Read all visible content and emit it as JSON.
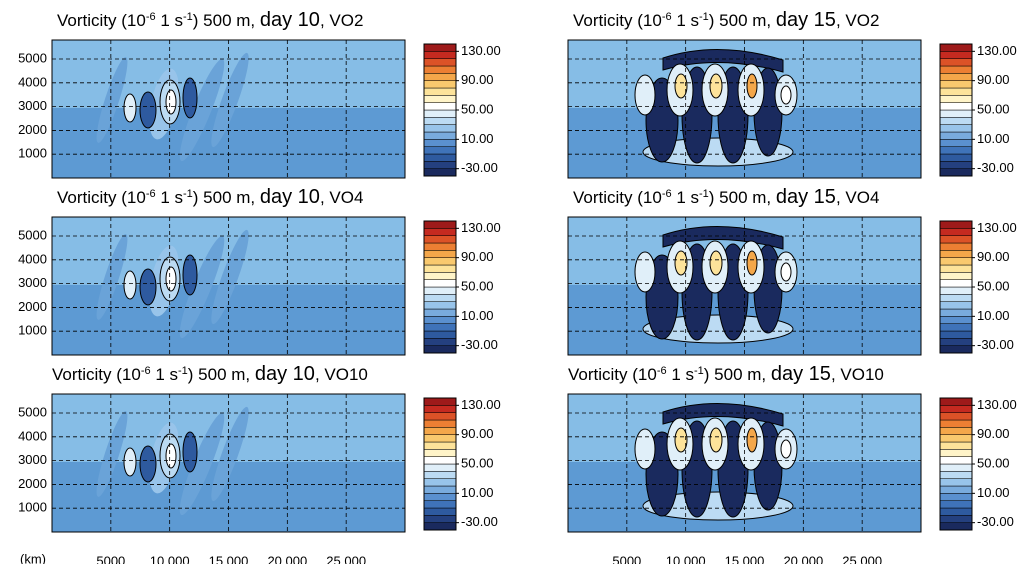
{
  "chart_data": [
    {
      "type": "contour",
      "title": [
        "Vorticity (10",
        "-6",
        " 1 s",
        "-1",
        ") 500 m, ",
        "day 10",
        ", VO2"
      ],
      "xlim": [
        0,
        30000
      ],
      "ylim": [
        0,
        5800
      ],
      "xticks": [
        5000,
        10000,
        15000,
        20000,
        25000
      ],
      "yticks": [
        1000,
        2000,
        3000,
        4000,
        5000
      ],
      "grid": true,
      "colorbar": {
        "lim": [
          -40,
          140
        ],
        "ticks": [
          {
            "value": 130,
            "label": "130.00"
          },
          {
            "value": 90,
            "label": "90.00"
          },
          {
            "value": 50,
            "label": "50.00"
          },
          {
            "value": 10,
            "label": "10.00"
          },
          {
            "value": -30,
            "label": "-30.00"
          }
        ],
        "colors": [
          "#1a2a5e",
          "#24407f",
          "#2e5a9f",
          "#3f73b9",
          "#5a90cf",
          "#79abdd",
          "#98c4ea",
          "#bcdbf3",
          "#e0eff9",
          "#ffffff",
          "#fff4c8",
          "#fde39a",
          "#f9c96e",
          "#f4a74a",
          "#ec7f33",
          "#dc5227",
          "#c52a20",
          "#9e1a1a"
        ]
      }
    },
    {
      "type": "contour",
      "title": [
        "Vorticity (10",
        "-6",
        " 1 s",
        "-1",
        ") 500 m, ",
        "day 15",
        ", VO2"
      ],
      "xlim": [
        0,
        30000
      ],
      "ylim": [
        0,
        5800
      ],
      "xticks": [
        5000,
        10000,
        15000,
        20000,
        25000
      ],
      "yticks": [
        1000,
        2000,
        3000,
        4000,
        5000
      ],
      "grid": true,
      "colorbar": {
        "lim": [
          -40,
          140
        ],
        "ticks": [
          {
            "value": 130,
            "label": "130.00"
          },
          {
            "value": 90,
            "label": "90.00"
          },
          {
            "value": 50,
            "label": "50.00"
          },
          {
            "value": 10,
            "label": "10.00"
          },
          {
            "value": -30,
            "label": "-30.00"
          }
        ],
        "colors": [
          "#1a2a5e",
          "#24407f",
          "#2e5a9f",
          "#3f73b9",
          "#5a90cf",
          "#79abdd",
          "#98c4ea",
          "#bcdbf3",
          "#e0eff9",
          "#ffffff",
          "#fff4c8",
          "#fde39a",
          "#f9c96e",
          "#f4a74a",
          "#ec7f33",
          "#dc5227",
          "#c52a20",
          "#9e1a1a"
        ]
      }
    },
    {
      "type": "contour",
      "title": [
        "Vorticity (10",
        "-6",
        " 1 s",
        "-1",
        ") 500 m, ",
        "day 10",
        ", VO4"
      ],
      "xlim": [
        0,
        30000
      ],
      "ylim": [
        0,
        5800
      ],
      "xticks": [
        5000,
        10000,
        15000,
        20000,
        25000
      ],
      "yticks": [
        1000,
        2000,
        3000,
        4000,
        5000
      ],
      "grid": true,
      "colorbar": {
        "lim": [
          -40,
          140
        ],
        "ticks": [
          {
            "value": 130,
            "label": "130.00"
          },
          {
            "value": 90,
            "label": "90.00"
          },
          {
            "value": 50,
            "label": "50.00"
          },
          {
            "value": 10,
            "label": "10.00"
          },
          {
            "value": -30,
            "label": "-30.00"
          }
        ],
        "colors": [
          "#1a2a5e",
          "#24407f",
          "#2e5a9f",
          "#3f73b9",
          "#5a90cf",
          "#79abdd",
          "#98c4ea",
          "#bcdbf3",
          "#e0eff9",
          "#ffffff",
          "#fff4c8",
          "#fde39a",
          "#f9c96e",
          "#f4a74a",
          "#ec7f33",
          "#dc5227",
          "#c52a20",
          "#9e1a1a"
        ]
      }
    },
    {
      "type": "contour",
      "title": [
        "Vorticity (10",
        "-6",
        " 1 s",
        "-1",
        ") 500 m, ",
        "day 15",
        ", VO4"
      ],
      "xlim": [
        0,
        30000
      ],
      "ylim": [
        0,
        5800
      ],
      "xticks": [
        5000,
        10000,
        15000,
        20000,
        25000
      ],
      "yticks": [
        1000,
        2000,
        3000,
        4000,
        5000
      ],
      "grid": true,
      "colorbar": {
        "lim": [
          -40,
          140
        ],
        "ticks": [
          {
            "value": 130,
            "label": "130.00"
          },
          {
            "value": 90,
            "label": "90.00"
          },
          {
            "value": 50,
            "label": "50.00"
          },
          {
            "value": 10,
            "label": "10.00"
          },
          {
            "value": -30,
            "label": "-30.00"
          }
        ],
        "colors": [
          "#1a2a5e",
          "#24407f",
          "#2e5a9f",
          "#3f73b9",
          "#5a90cf",
          "#79abdd",
          "#98c4ea",
          "#bcdbf3",
          "#e0eff9",
          "#ffffff",
          "#fff4c8",
          "#fde39a",
          "#f9c96e",
          "#f4a74a",
          "#ec7f33",
          "#dc5227",
          "#c52a20",
          "#9e1a1a"
        ]
      }
    },
    {
      "type": "contour",
      "title": [
        "Vorticity (10",
        "-6",
        " 1 s",
        "-1",
        ") 500 m, ",
        "day 10",
        ", VO10"
      ],
      "xlabel": "(km)",
      "xlim": [
        0,
        30000
      ],
      "ylim": [
        0,
        5800
      ],
      "xticks": [
        5000,
        {
          "value": 10000,
          "label": "10 000"
        },
        {
          "value": 15000,
          "label": "15 000"
        },
        {
          "value": 20000,
          "label": "20 000"
        },
        {
          "value": 25000,
          "label": "25 000"
        }
      ],
      "yticks": [
        1000,
        2000,
        3000,
        4000,
        5000
      ],
      "grid": true,
      "colorbar": {
        "lim": [
          -40,
          140
        ],
        "ticks": [
          {
            "value": 130,
            "label": "130.00"
          },
          {
            "value": 90,
            "label": "90.00"
          },
          {
            "value": 50,
            "label": "50.00"
          },
          {
            "value": 10,
            "label": "10.00"
          },
          {
            "value": -30,
            "label": "-30.00"
          }
        ],
        "colors": [
          "#1a2a5e",
          "#24407f",
          "#2e5a9f",
          "#3f73b9",
          "#5a90cf",
          "#79abdd",
          "#98c4ea",
          "#bcdbf3",
          "#e0eff9",
          "#ffffff",
          "#fff4c8",
          "#fde39a",
          "#f9c96e",
          "#f4a74a",
          "#ec7f33",
          "#dc5227",
          "#c52a20",
          "#9e1a1a"
        ]
      }
    },
    {
      "type": "contour",
      "title": [
        "Vorticity (10",
        "-6",
        " 1 s",
        "-1",
        ") 500 m, ",
        "day 15",
        ", VO10"
      ],
      "xlim": [
        0,
        30000
      ],
      "ylim": [
        0,
        5800
      ],
      "xticks": [
        5000,
        {
          "value": 10000,
          "label": "10 000"
        },
        {
          "value": 15000,
          "label": "15 000"
        },
        {
          "value": 20000,
          "label": "20 000"
        },
        {
          "value": 25000,
          "label": "25 000"
        }
      ],
      "yticks": [
        1000,
        2000,
        3000,
        4000,
        5000
      ],
      "grid": true,
      "colorbar": {
        "lim": [
          -40,
          140
        ],
        "ticks": [
          {
            "value": 130,
            "label": "130.00"
          },
          {
            "value": 90,
            "label": "90.00"
          },
          {
            "value": 50,
            "label": "50.00"
          },
          {
            "value": 10,
            "label": "10.00"
          },
          {
            "value": -30,
            "label": "-30.00"
          }
        ],
        "colors": [
          "#1a2a5e",
          "#24407f",
          "#2e5a9f",
          "#3f73b9",
          "#5a90cf",
          "#79abdd",
          "#98c4ea",
          "#bcdbf3",
          "#e0eff9",
          "#ffffff",
          "#fff4c8",
          "#fde39a",
          "#f9c96e",
          "#f4a74a",
          "#ec7f33",
          "#dc5227",
          "#c52a20",
          "#9e1a1a"
        ]
      }
    }
  ]
}
